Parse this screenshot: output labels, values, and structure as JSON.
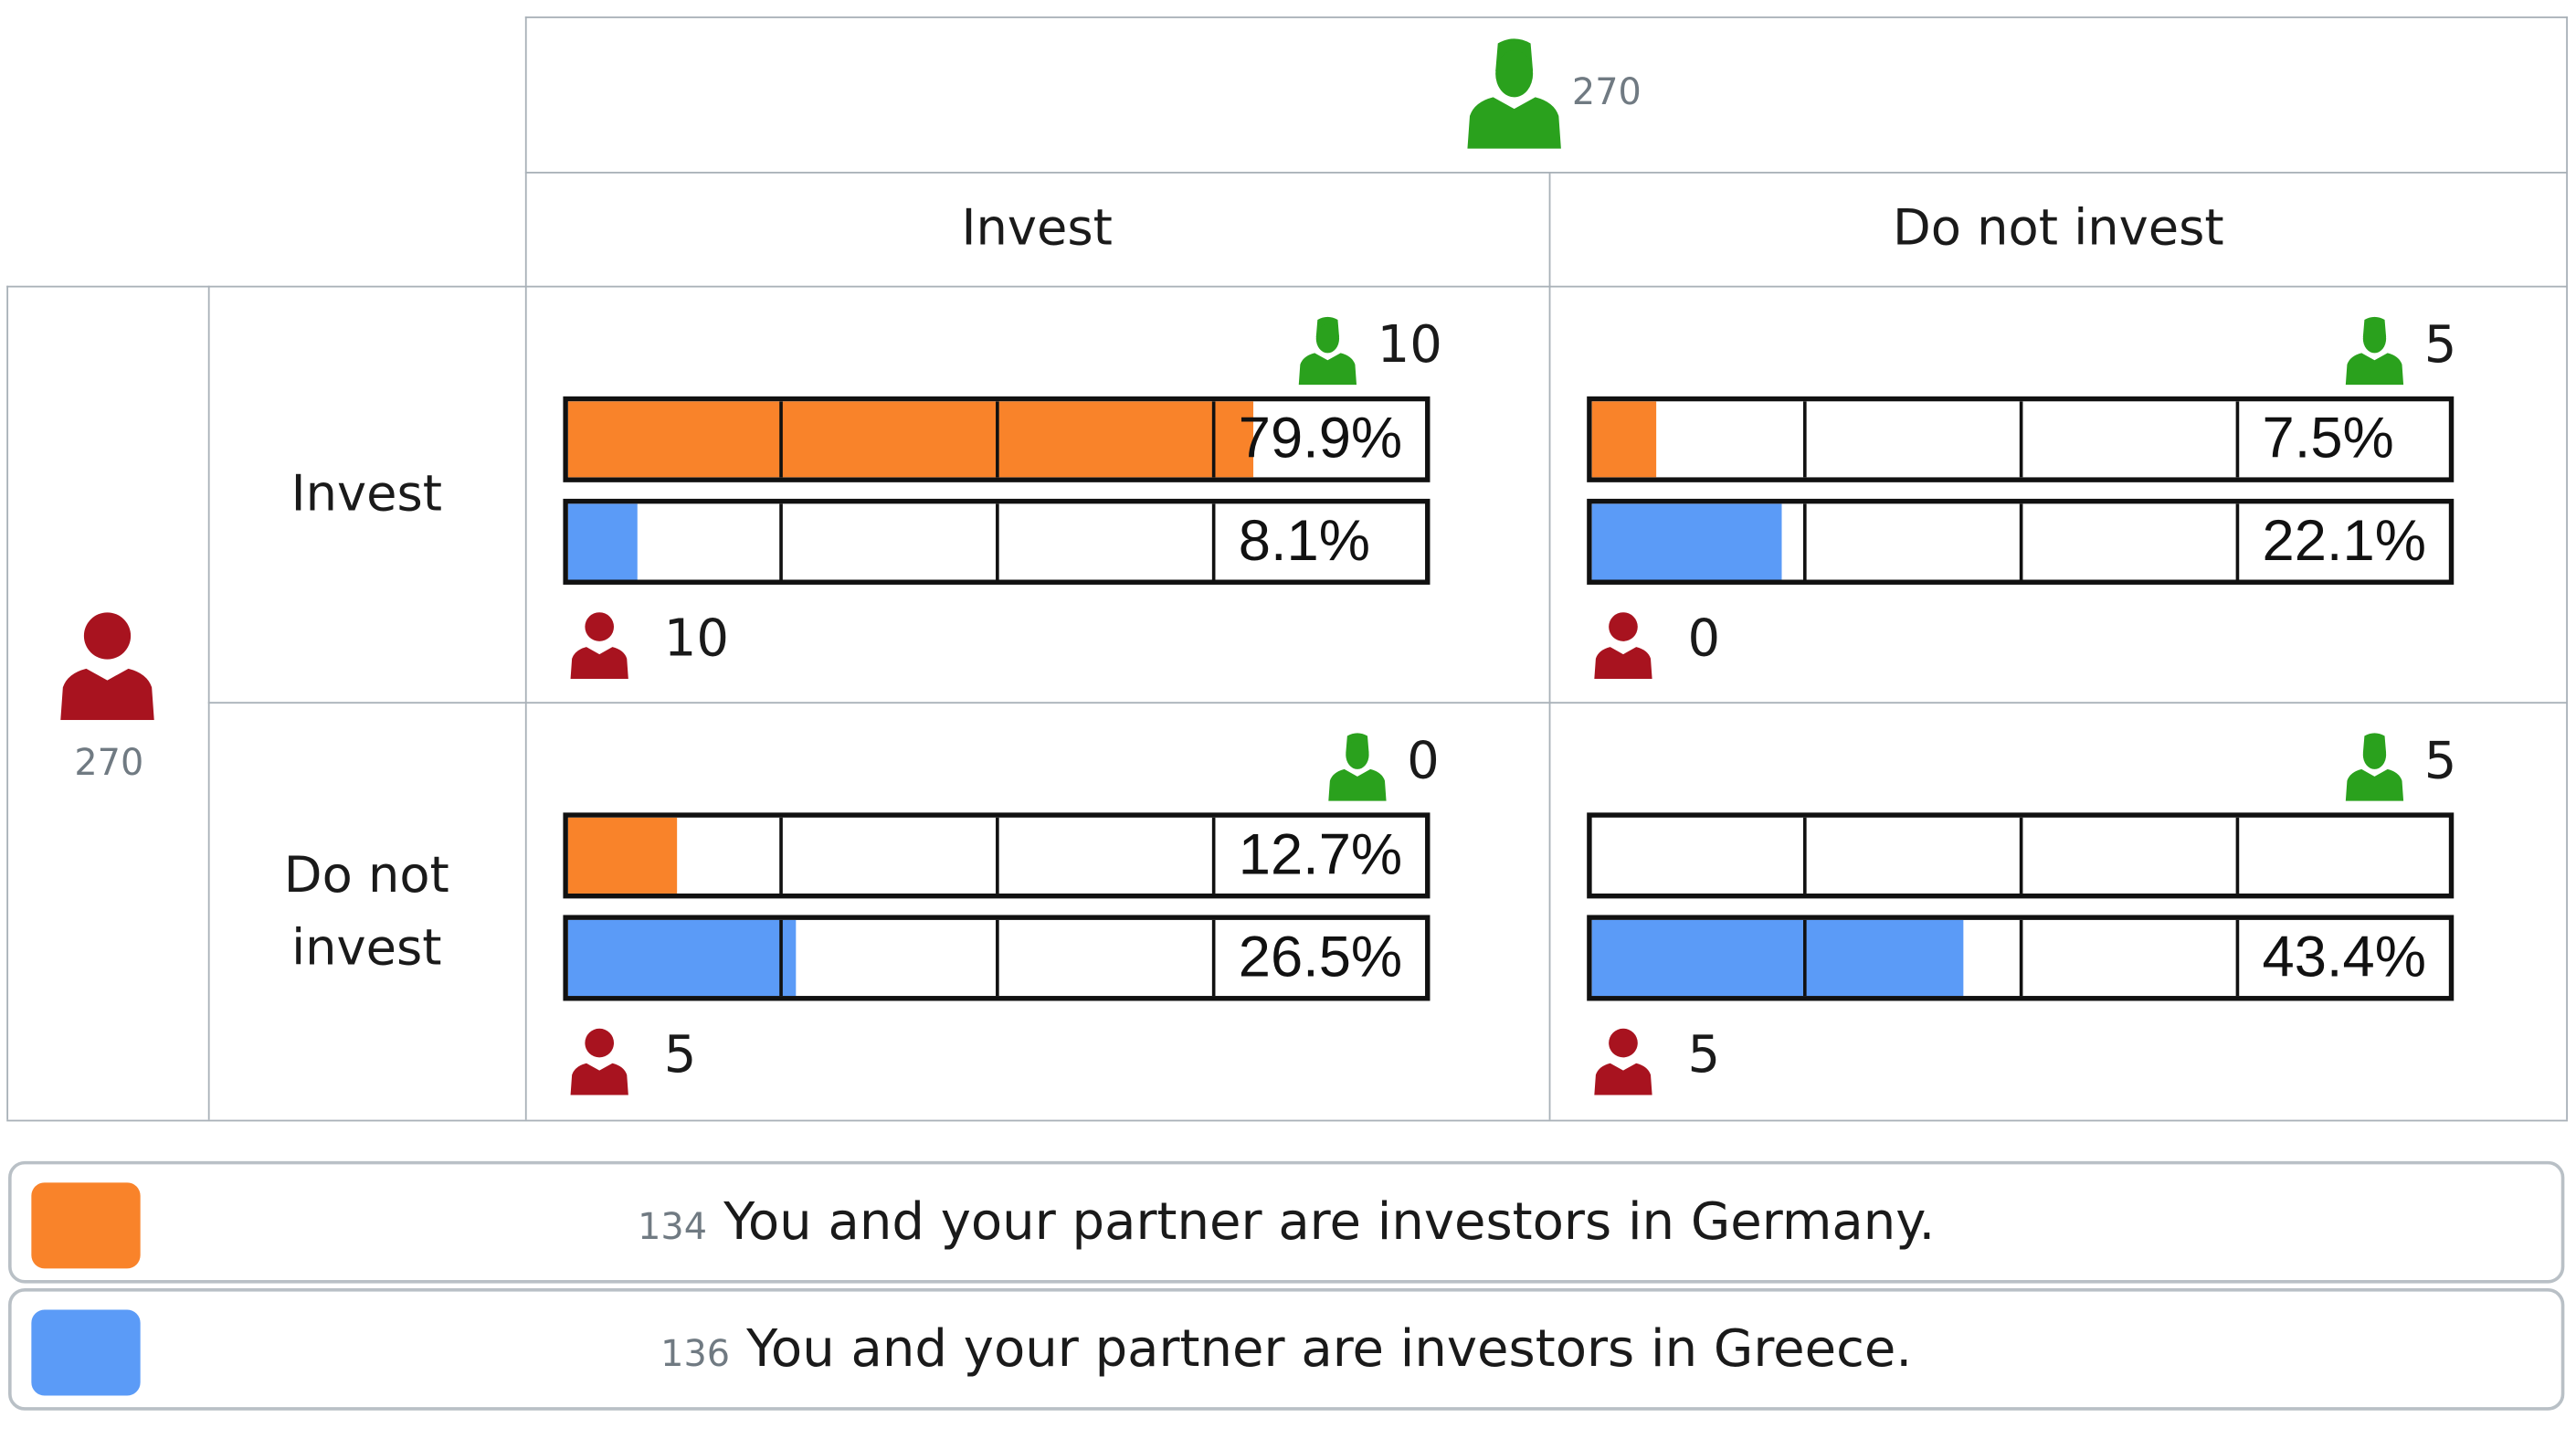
{
  "colors": {
    "germany": "#f9832a",
    "greece": "#5b9bf7",
    "player_top": "#2aa11d",
    "player_side": "#a8131f"
  },
  "header": {
    "top_player_count": "270",
    "side_player_count": "270"
  },
  "columns": [
    {
      "label": "Invest"
    },
    {
      "label": "Do not invest"
    }
  ],
  "rows": [
    {
      "label": "Invest"
    },
    {
      "label": "Do not invest"
    }
  ],
  "icons": {
    "top_player": "green-person-icon",
    "side_player": "red-person-icon"
  },
  "cells": [
    {
      "top_payoff": "10",
      "side_payoff": "10",
      "germany_label": "79.9%",
      "greece_label": "8.1%"
    },
    {
      "top_payoff": "5",
      "side_payoff": "0",
      "germany_label": "7.5%",
      "greece_label": "22.1%"
    },
    {
      "top_payoff": "0",
      "side_payoff": "5",
      "germany_label": "12.7%",
      "greece_label": "26.5%"
    },
    {
      "top_payoff": "5",
      "side_payoff": "5",
      "germany_label": "",
      "greece_label": "43.4%"
    }
  ],
  "legend": [
    {
      "count": "134",
      "text": "You and your partner are investors in Germany."
    },
    {
      "count": "136",
      "text": "You and your partner are investors in Greece."
    }
  ],
  "chart_data": {
    "type": "bar",
    "row_labels": [
      "Invest",
      "Do not invest"
    ],
    "column_labels": [
      "Invest",
      "Do not invest"
    ],
    "xlim": [
      0,
      100
    ],
    "series": [
      {
        "name": "You and your partner are investors in Germany.",
        "color": "#f9832a",
        "values": [
          79.9,
          7.5,
          12.7,
          0
        ]
      },
      {
        "name": "You and your partner are investors in Greece.",
        "color": "#5b9bf7",
        "values": [
          8.1,
          22.1,
          26.5,
          43.4
        ]
      }
    ]
  }
}
